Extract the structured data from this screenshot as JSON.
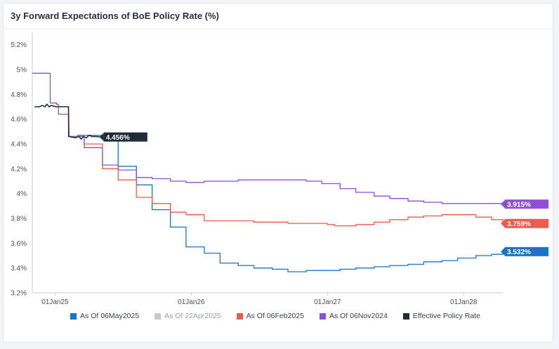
{
  "title": "3y Forward Expectations of BoE Policy Rate (%)",
  "chart_data": {
    "type": "line",
    "title": "3y Forward Expectations of BoE Policy Rate (%)",
    "xlabel": "",
    "ylabel": "",
    "x_ticks": [
      "01Jan25",
      "01Jan26",
      "01Jan27",
      "01Jan28"
    ],
    "y_ticks": [
      "3.2%",
      "3.4%",
      "3.6%",
      "3.8%",
      "4%",
      "4.2%",
      "4.4%",
      "4.6%",
      "4.8%",
      "5%",
      "5.2%"
    ],
    "xlim": [
      "2024-11-01",
      "2028-04-15"
    ],
    "ylim": [
      3.2,
      5.3
    ],
    "grid": false,
    "legend_position": "bottom",
    "series": [
      {
        "name": "As Of 06May2025",
        "color": "#1a73c7",
        "end_label": "3.532%",
        "points": [
          [
            "2025-03-01",
            4.47
          ],
          [
            "2025-05-08",
            4.45
          ],
          [
            "2025-06-19",
            4.22
          ],
          [
            "2025-08-07",
            4.07
          ],
          [
            "2025-09-18",
            3.87
          ],
          [
            "2025-11-06",
            3.73
          ],
          [
            "2025-12-18",
            3.57
          ],
          [
            "2026-02-05",
            3.52
          ],
          [
            "2026-03-19",
            3.44
          ],
          [
            "2026-05-07",
            3.42
          ],
          [
            "2026-06-18",
            3.4
          ],
          [
            "2026-08-06",
            3.39
          ],
          [
            "2026-09-17",
            3.37
          ],
          [
            "2026-11-05",
            3.38
          ],
          [
            "2027-01-01",
            3.38
          ],
          [
            "2027-02-04",
            3.39
          ],
          [
            "2027-03-18",
            3.4
          ],
          [
            "2027-05-06",
            3.41
          ],
          [
            "2027-06-17",
            3.42
          ],
          [
            "2027-08-05",
            3.43
          ],
          [
            "2027-09-16",
            3.45
          ],
          [
            "2027-11-04",
            3.46
          ],
          [
            "2027-12-16",
            3.48
          ],
          [
            "2028-02-03",
            3.5
          ],
          [
            "2028-03-16",
            3.51
          ],
          [
            "2028-04-15",
            3.532
          ]
        ]
      },
      {
        "name": "As Of 22Apr2025",
        "color": "#c8c8c8",
        "end_label": "",
        "points": []
      },
      {
        "name": "As Of 06Feb2025",
        "color": "#f05a4a",
        "end_label": "3.759%",
        "points": [
          [
            "2025-02-06",
            4.46
          ],
          [
            "2025-03-20",
            4.4
          ],
          [
            "2025-05-08",
            4.2
          ],
          [
            "2025-06-19",
            4.11
          ],
          [
            "2025-08-07",
            3.97
          ],
          [
            "2025-09-18",
            3.92
          ],
          [
            "2025-11-06",
            3.85
          ],
          [
            "2025-12-18",
            3.83
          ],
          [
            "2026-02-05",
            3.78
          ],
          [
            "2026-06-18",
            3.77
          ],
          [
            "2026-09-17",
            3.76
          ],
          [
            "2027-01-01",
            3.75
          ],
          [
            "2027-01-20",
            3.74
          ],
          [
            "2027-03-18",
            3.75
          ],
          [
            "2027-05-06",
            3.77
          ],
          [
            "2027-06-17",
            3.79
          ],
          [
            "2027-08-05",
            3.81
          ],
          [
            "2027-09-16",
            3.82
          ],
          [
            "2027-11-04",
            3.83
          ],
          [
            "2027-12-16",
            3.83
          ],
          [
            "2028-02-03",
            3.81
          ],
          [
            "2028-03-16",
            3.79
          ],
          [
            "2028-04-15",
            3.759
          ]
        ]
      },
      {
        "name": "As Of 06Nov2024",
        "color": "#8e4fd6",
        "end_label": "3.915%",
        "points": [
          [
            "2024-11-01",
            4.97
          ],
          [
            "2024-11-07",
            4.97
          ],
          [
            "2024-12-19",
            4.73
          ],
          [
            "2025-01-05",
            4.72
          ],
          [
            "2025-01-10",
            4.64
          ],
          [
            "2025-02-06",
            4.46
          ],
          [
            "2025-03-20",
            4.37
          ],
          [
            "2025-05-08",
            4.23
          ],
          [
            "2025-06-19",
            4.19
          ],
          [
            "2025-08-07",
            4.13
          ],
          [
            "2025-09-18",
            4.12
          ],
          [
            "2025-11-06",
            4.1
          ],
          [
            "2025-12-18",
            4.09
          ],
          [
            "2026-02-05",
            4.1
          ],
          [
            "2026-05-07",
            4.11
          ],
          [
            "2026-09-17",
            4.11
          ],
          [
            "2026-11-05",
            4.1
          ],
          [
            "2026-12-17",
            4.08
          ],
          [
            "2027-02-04",
            4.04
          ],
          [
            "2027-03-18",
            4.01
          ],
          [
            "2027-05-06",
            3.98
          ],
          [
            "2027-06-17",
            3.96
          ],
          [
            "2027-08-05",
            3.94
          ],
          [
            "2027-09-16",
            3.93
          ],
          [
            "2027-11-04",
            3.92
          ],
          [
            "2027-12-16",
            3.92
          ],
          [
            "2028-04-15",
            3.915
          ]
        ]
      },
      {
        "name": "Effective Policy Rate",
        "color": "#1f2b38",
        "end_label": "4.456%",
        "points": [
          [
            "2024-11-07",
            4.7
          ],
          [
            "2024-11-20",
            4.7
          ],
          [
            "2024-11-28",
            4.71
          ],
          [
            "2024-12-05",
            4.7
          ],
          [
            "2024-12-10",
            4.72
          ],
          [
            "2024-12-16",
            4.7
          ],
          [
            "2024-12-22",
            4.71
          ],
          [
            "2025-01-05",
            4.7
          ],
          [
            "2025-02-06",
            4.7
          ],
          [
            "2025-02-07",
            4.46
          ],
          [
            "2025-02-25",
            4.45
          ],
          [
            "2025-03-06",
            4.46
          ],
          [
            "2025-03-12",
            4.44
          ],
          [
            "2025-03-18",
            4.46
          ],
          [
            "2025-03-26",
            4.45
          ],
          [
            "2025-04-02",
            4.47
          ],
          [
            "2025-04-10",
            4.46
          ],
          [
            "2025-04-20",
            4.46
          ],
          [
            "2025-05-06",
            4.456
          ]
        ]
      }
    ]
  }
}
